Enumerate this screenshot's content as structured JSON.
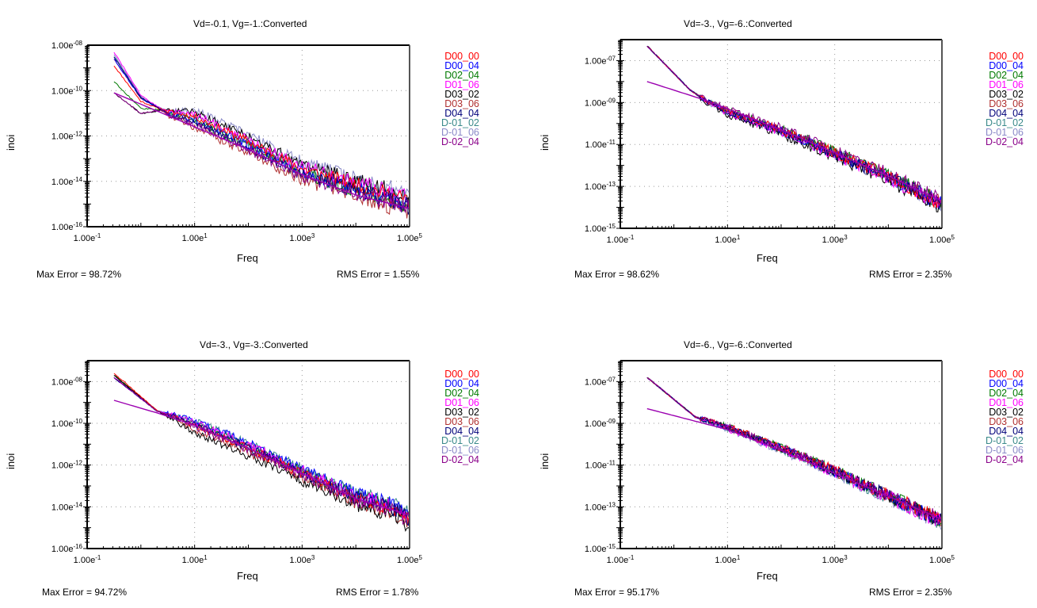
{
  "legend_series": [
    {
      "name": "D00_00",
      "color": "#ff0000"
    },
    {
      "name": "D00_04",
      "color": "#0000ff"
    },
    {
      "name": "D02_04",
      "color": "#007a00"
    },
    {
      "name": "D01_06",
      "color": "#ff00ff"
    },
    {
      "name": "D03_02",
      "color": "#000000"
    },
    {
      "name": "D03_06",
      "color": "#b03030"
    },
    {
      "name": "D04_04",
      "color": "#00007a"
    },
    {
      "name": "D-01_02",
      "color": "#3a8a8a"
    },
    {
      "name": "D-01_06",
      "color": "#8a8ac8"
    },
    {
      "name": "D-02_04",
      "color": "#8a008a"
    }
  ],
  "fit_color": "#9b00b0",
  "chart_data": [
    {
      "type": "line",
      "title": "Vd=-0.1, Vg=-1.:Converted",
      "xlabel": "Freq",
      "ylabel": "inoi",
      "xscale": "log",
      "yscale": "log",
      "xlim": [
        0.1,
        100000
      ],
      "ylim": [
        1e-16,
        1e-08
      ],
      "xticks": [
        "1.00e-1",
        "1.00e1",
        "1.00e3",
        "1.00e5"
      ],
      "yticks": [
        "1.00e-08",
        "1.00e-10",
        "1.00e-12",
        "1.00e-14",
        "1.00e-16"
      ],
      "grid": true,
      "legend_position": "right",
      "max_error": "Max Error = 98.72%",
      "rms_error": "RMS Error = 1.55%",
      "series_trend_log10": {
        "x": [
          -0.5,
          0.0,
          0.5,
          1.0,
          2.0,
          3.0,
          4.0,
          5.0
        ],
        "y": [
          -8.5,
          -10.3,
          -11.0,
          -11.4,
          -12.5,
          -13.7,
          -14.4,
          -15.1
        ]
      },
      "series_start_log10": [
        -8.9,
        -8.6,
        -9.6,
        -8.3,
        -10.1,
        -8.6,
        -8.5,
        -8.5,
        -8.4,
        -10.1
      ],
      "series_offset_log10": [
        0.25,
        0.1,
        0.05,
        0.35,
        0.45,
        -0.25,
        0.0,
        0.2,
        0.55,
        -0.1
      ],
      "fit_log10": {
        "x": [
          -0.5,
          1.0,
          2.0,
          3.0,
          4.0,
          5.0
        ],
        "y": [
          -10.1,
          -11.6,
          -12.6,
          -13.7,
          -14.6,
          -15.2
        ]
      }
    },
    {
      "type": "line",
      "title": "Vd=-3., Vg=-6.:Converted",
      "xlabel": "Freq",
      "ylabel": "inoi",
      "xscale": "log",
      "yscale": "log",
      "xlim": [
        0.1,
        100000
      ],
      "ylim": [
        1e-15,
        1e-06
      ],
      "xticks": [
        "1.00e-1",
        "1.00e1",
        "1.00e3",
        "1.00e5"
      ],
      "yticks": [
        "1.00e-07",
        "1.00e-09",
        "1.00e-11",
        "1.00e-13",
        "1.00e-15"
      ],
      "grid": true,
      "legend_position": "right",
      "max_error": "Max Error = 98.62%",
      "rms_error": "RMS Error = 2.35%",
      "series_trend_log10": {
        "x": [
          -0.5,
          0.3,
          0.6,
          1.0,
          2.0,
          3.0,
          4.0,
          5.0
        ],
        "y": [
          -6.3,
          -8.4,
          -8.9,
          -9.4,
          -10.3,
          -11.4,
          -12.5,
          -13.8
        ]
      },
      "series_start_log10": [
        -6.3,
        -6.3,
        -6.3,
        -6.3,
        -6.3,
        -6.3,
        -6.3,
        -6.3,
        -6.3,
        -6.3
      ],
      "series_offset_log10": [
        0.0,
        -0.05,
        0.05,
        -0.1,
        -0.2,
        0.0,
        -0.05,
        0.0,
        -0.1,
        0.1
      ],
      "fit_log10": {
        "x": [
          -0.5,
          0.6,
          1.0,
          2.0,
          3.0,
          4.0,
          5.0
        ],
        "y": [
          -8.0,
          -8.9,
          -9.3,
          -10.3,
          -11.4,
          -12.5,
          -13.7
        ]
      }
    },
    {
      "type": "line",
      "title": "Vd=-3., Vg=-3.:Converted",
      "xlabel": "Freq",
      "ylabel": "inoi",
      "xscale": "log",
      "yscale": "log",
      "xlim": [
        0.1,
        100000
      ],
      "ylim": [
        1e-16,
        1e-07
      ],
      "xticks": [
        "1.00e-1",
        "1.00e1",
        "1.00e3",
        "1.00e5"
      ],
      "yticks": [
        "1.00e-08",
        "1.00e-10",
        "1.00e-12",
        "1.00e-14",
        "1.00e-16"
      ],
      "grid": true,
      "legend_position": "right",
      "max_error": "Max Error = 94.72%",
      "rms_error": "RMS Error = 1.78%",
      "series_trend_log10": {
        "x": [
          -0.5,
          0.3,
          1.0,
          2.0,
          3.0,
          4.0,
          4.6,
          5.0
        ],
        "y": [
          -7.7,
          -9.4,
          -10.1,
          -11.2,
          -12.4,
          -13.6,
          -14.0,
          -14.6
        ]
      },
      "series_start_log10": [
        -7.6,
        -7.8,
        -7.7,
        -7.8,
        -7.7,
        -7.7,
        -7.8,
        -7.7,
        -7.8,
        -7.8
      ],
      "series_offset_log10": [
        0.0,
        0.25,
        0.1,
        0.15,
        -0.35,
        -0.2,
        0.05,
        0.25,
        0.1,
        -0.05
      ],
      "fit_log10": {
        "x": [
          -0.5,
          0.3,
          1.0,
          2.0,
          3.0,
          4.0,
          5.0
        ],
        "y": [
          -8.9,
          -9.5,
          -10.1,
          -11.2,
          -12.4,
          -13.6,
          -14.4
        ]
      }
    },
    {
      "type": "line",
      "title": "Vd=-6., Vg=-6.:Converted",
      "xlabel": "Freq",
      "ylabel": "inoi",
      "xscale": "log",
      "yscale": "log",
      "xlim": [
        0.1,
        100000
      ],
      "ylim": [
        1e-15,
        1e-06
      ],
      "xticks": [
        "1.00e-1",
        "1.00e1",
        "1.00e3",
        "1.00e5"
      ],
      "yticks": [
        "1.00e-07",
        "1.00e-09",
        "1.00e-11",
        "1.00e-13",
        "1.00e-15"
      ],
      "grid": true,
      "legend_position": "right",
      "max_error": "Max Error = 95.17%",
      "rms_error": "RMS Error = 2.35%",
      "series_trend_log10": {
        "x": [
          -0.5,
          0.4,
          1.0,
          2.0,
          3.0,
          4.0,
          5.0
        ],
        "y": [
          -6.8,
          -8.7,
          -9.2,
          -10.2,
          -11.3,
          -12.5,
          -13.7
        ]
      },
      "series_start_log10": [
        -6.8,
        -6.8,
        -6.8,
        -6.8,
        -6.8,
        -6.8,
        -6.8,
        -6.8,
        -6.8,
        -6.8
      ],
      "series_offset_log10": [
        0.05,
        0.0,
        0.05,
        -0.05,
        0.0,
        0.0,
        0.0,
        -0.05,
        -0.1,
        0.05
      ],
      "fit_log10": {
        "x": [
          -0.5,
          0.4,
          1.0,
          2.0,
          3.0,
          4.0,
          5.0
        ],
        "y": [
          -8.3,
          -8.9,
          -9.3,
          -10.3,
          -11.4,
          -12.5,
          -13.6
        ]
      }
    }
  ]
}
